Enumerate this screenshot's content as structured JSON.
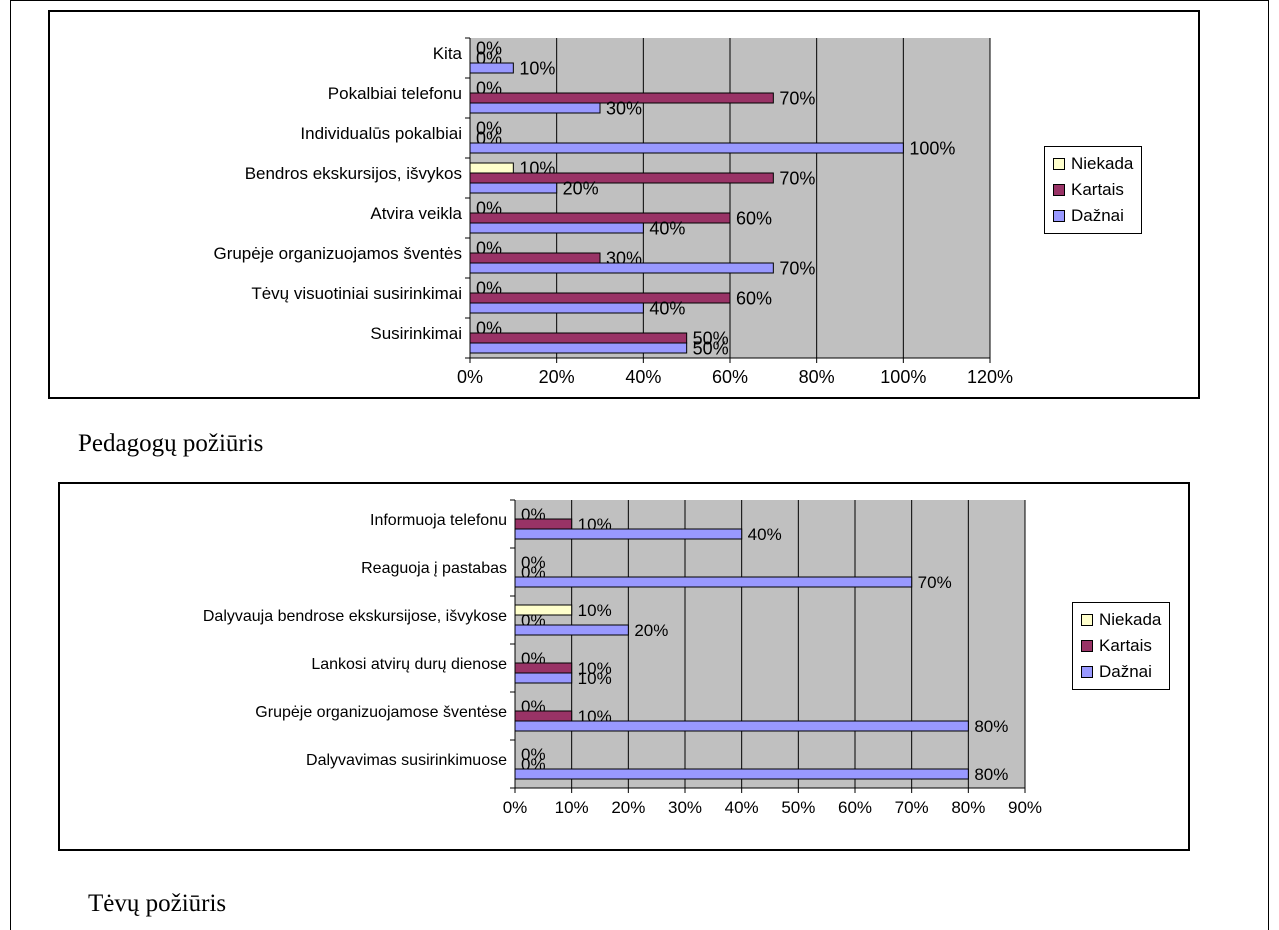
{
  "colors": {
    "Niekada": "#FFFFCC",
    "Kartais": "#993366",
    "Dažnai": "#9999FF",
    "plot_bg": "#C0C0C0"
  },
  "captions": {
    "chart1": "Pedagogų požiūris",
    "chart2": "Tėvų požiūris"
  },
  "chart_data": [
    {
      "type": "bar",
      "orientation": "horizontal",
      "categories": [
        "Kita",
        "Pokalbiai telefonu",
        "Individualūs pokalbiai",
        "Bendros ekskursijos, išvykos",
        "Atvira veikla",
        "Grupėje organizuojamos šventės",
        "Tėvų visuotiniai susirinkimai",
        "Susirinkimai"
      ],
      "series": [
        {
          "name": "Niekada",
          "values": [
            0,
            0,
            0,
            10,
            0,
            0,
            0,
            0
          ]
        },
        {
          "name": "Kartais",
          "values": [
            0,
            70,
            0,
            70,
            60,
            30,
            60,
            50
          ]
        },
        {
          "name": "Dažnai",
          "values": [
            10,
            30,
            100,
            20,
            40,
            70,
            40,
            50
          ]
        }
      ],
      "xlim": [
        0,
        120
      ],
      "xticks": [
        "0%",
        "20%",
        "40%",
        "60%",
        "80%",
        "100%",
        "120%"
      ],
      "value_suffix": "%",
      "legend_position": "right",
      "grid": true
    },
    {
      "type": "bar",
      "orientation": "horizontal",
      "categories": [
        "Informuoja telefonu",
        "Reaguoja į pastabas",
        "Dalyvauja bendrose ekskursijose, išvykose",
        "Lankosi atvirų durų dienose",
        "Grupėje organizuojamose šventėse",
        "Dalyvavimas susirinkimuose"
      ],
      "series": [
        {
          "name": "Niekada",
          "values": [
            0,
            0,
            10,
            0,
            0,
            0
          ]
        },
        {
          "name": "Kartais",
          "values": [
            10,
            0,
            0,
            10,
            10,
            0
          ]
        },
        {
          "name": "Dažnai",
          "values": [
            40,
            70,
            20,
            10,
            80,
            80
          ]
        }
      ],
      "xlim": [
        0,
        90
      ],
      "xticks": [
        "0%",
        "10%",
        "20%",
        "30%",
        "40%",
        "50%",
        "60%",
        "70%",
        "80%",
        "90%"
      ],
      "value_suffix": "%",
      "legend_position": "right",
      "grid": true
    }
  ]
}
